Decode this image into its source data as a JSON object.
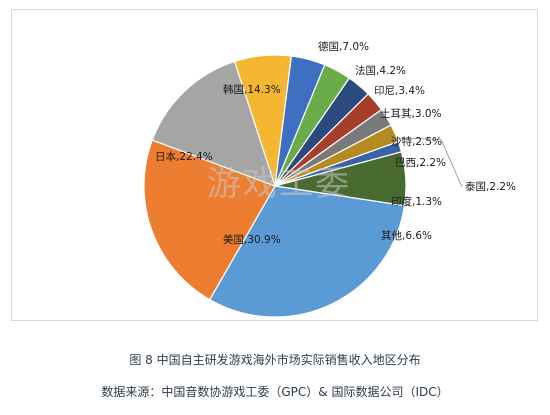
{
  "chart_data": {
    "type": "pie",
    "slices": [
      {
        "label": "德国",
        "value": 7.0,
        "text": "德国,7.0%",
        "color": "#f5b731"
      },
      {
        "label": "法国",
        "value": 4.2,
        "text": "法国,4.2%",
        "color": "#3f6fc1"
      },
      {
        "label": "印尼",
        "value": 3.4,
        "text": "印尼,3.4%",
        "color": "#6aab4a"
      },
      {
        "label": "土耳其",
        "value": 3.0,
        "text": "土耳其,3.0%",
        "color": "#2b4a7e"
      },
      {
        "label": "沙特",
        "value": 2.5,
        "text": "沙特,2.5%",
        "color": "#a63e2a"
      },
      {
        "label": "巴西",
        "value": 2.2,
        "text": "巴西,2.2%",
        "color": "#7a7a7a"
      },
      {
        "label": "泰国",
        "value": 2.2,
        "text": "泰国,2.2%",
        "color": "#b58a1f"
      },
      {
        "label": "印度",
        "value": 1.3,
        "text": "印度,1.3%",
        "color": "#3a63a6"
      },
      {
        "label": "其他",
        "value": 6.6,
        "text": "其他,6.6%",
        "color": "#496b30"
      },
      {
        "label": "美国",
        "value": 30.9,
        "text": "美国,30.9%",
        "color": "#5b9bd5"
      },
      {
        "label": "日本",
        "value": 22.4,
        "text": "日本,22.4%",
        "color": "#ed7d31"
      },
      {
        "label": "韩国",
        "value": 14.3,
        "text": "韩国,14.3%",
        "color": "#a5a5a5"
      }
    ]
  },
  "watermark": "游戏工委",
  "caption": "图 8  中国自主研发游戏海外市场实际销售收入地区分布",
  "source": "数据来源：中国音数协游戏工委（GPC）& 国际数据公司（IDC）"
}
